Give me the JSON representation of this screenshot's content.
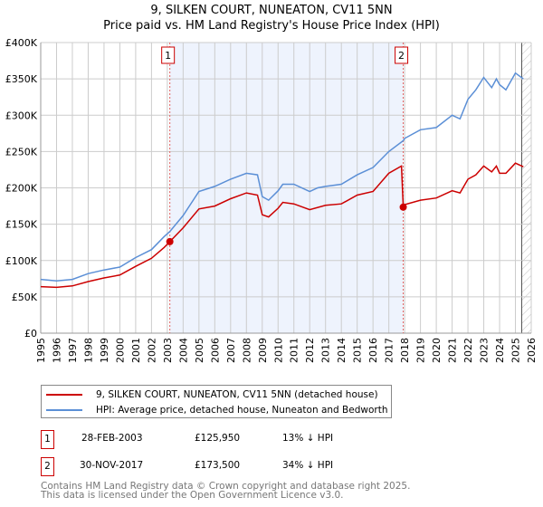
{
  "chart_data": {
    "type": "line",
    "title": "9, SILKEN COURT, NUNEATON, CV11 5NN",
    "subtitle": "Price paid vs. HM Land Registry's House Price Index (HPI)",
    "xlim": [
      1995,
      2026
    ],
    "ylim": [
      0,
      400000
    ],
    "x_ticks": [
      "1995",
      "1996",
      "1997",
      "1998",
      "1999",
      "2000",
      "2001",
      "2002",
      "2003",
      "2004",
      "2005",
      "2006",
      "2007",
      "2008",
      "2009",
      "2010",
      "2011",
      "2012",
      "2013",
      "2014",
      "2015",
      "2016",
      "2017",
      "2018",
      "2019",
      "2020",
      "2021",
      "2022",
      "2023",
      "2024",
      "2025",
      "2026"
    ],
    "y_ticks": [
      {
        "v": 0,
        "label": "£0"
      },
      {
        "v": 50000,
        "label": "£50K"
      },
      {
        "v": 100000,
        "label": "£100K"
      },
      {
        "v": 150000,
        "label": "£150K"
      },
      {
        "v": 200000,
        "label": "£200K"
      },
      {
        "v": 250000,
        "label": "£250K"
      },
      {
        "v": 300000,
        "label": "£300K"
      },
      {
        "v": 350000,
        "label": "£350K"
      },
      {
        "v": 400000,
        "label": "£400K"
      }
    ],
    "grid": true,
    "series": [
      {
        "name": "9, SILKEN COURT, NUNEATON, CV11 5NN (detached house)",
        "color": "#cc0000",
        "x": [
          1995,
          1996,
          1997,
          1998,
          1999,
          2000,
          2001,
          2002,
          2002.8,
          2003.16,
          2004,
          2005,
          2006,
          2007,
          2008,
          2008.7,
          2009,
          2009.4,
          2010,
          2010.3,
          2011,
          2012,
          2013,
          2014,
          2015,
          2016,
          2017,
          2017.8,
          2017.91,
          2018,
          2019,
          2020,
          2021,
          2021.5,
          2022,
          2022.5,
          2023,
          2023.5,
          2023.8,
          2024,
          2024.4,
          2025,
          2025.5
        ],
        "y": [
          64000,
          63000,
          65000,
          71000,
          76000,
          80000,
          92000,
          103000,
          118000,
          125950,
          145000,
          171000,
          175000,
          185000,
          193000,
          190000,
          163000,
          160000,
          172000,
          180000,
          178000,
          170000,
          176000,
          178000,
          190000,
          195000,
          220000,
          230000,
          173500,
          177000,
          183000,
          186000,
          196000,
          193000,
          212000,
          218000,
          230000,
          222000,
          230000,
          220000,
          220000,
          234000,
          229000
        ]
      },
      {
        "name": "HPI: Average price, detached house, Nuneaton and Bedworth",
        "color": "#5b8fd6",
        "x": [
          1995,
          1996,
          1997,
          1998,
          1999,
          2000,
          2001,
          2002,
          2002.8,
          2003.16,
          2004,
          2005,
          2006,
          2007,
          2008,
          2008.7,
          2009,
          2009.4,
          2010,
          2010.3,
          2011,
          2012,
          2012.5,
          2013,
          2014,
          2015,
          2016,
          2017,
          2017.91,
          2018,
          2019,
          2020,
          2021,
          2021.5,
          2022,
          2022.5,
          2023,
          2023.5,
          2023.8,
          2024,
          2024.4,
          2025,
          2025.5
        ],
        "y": [
          74000,
          72000,
          74000,
          82000,
          87000,
          91000,
          104000,
          115000,
          133000,
          140000,
          162000,
          195000,
          202000,
          212000,
          220000,
          218000,
          188000,
          183000,
          196000,
          205000,
          205000,
          195000,
          200000,
          202000,
          205000,
          218000,
          228000,
          250000,
          265000,
          268000,
          280000,
          283000,
          300000,
          295000,
          322000,
          335000,
          352000,
          338000,
          350000,
          342000,
          335000,
          358000,
          350000
        ]
      }
    ],
    "sales": [
      {
        "id": "1",
        "x": 2003.16,
        "y": 125950
      },
      {
        "id": "2",
        "x": 2017.91,
        "y": 173500
      }
    ],
    "shaded_range": [
      2003.16,
      2017.91
    ],
    "forecast_from": 2025.4
  },
  "legend": [
    "9, SILKEN COURT, NUNEATON, CV11 5NN (detached house)",
    "HPI: Average price, detached house, Nuneaton and Bedworth"
  ],
  "transactions": [
    {
      "id": "1",
      "date": "28-FEB-2003",
      "price": "£125,950",
      "hpi": "13% ↓ HPI"
    },
    {
      "id": "2",
      "date": "30-NOV-2017",
      "price": "£173,500",
      "hpi": "34% ↓ HPI"
    }
  ],
  "footer": [
    "Contains HM Land Registry data © Crown copyright and database right 2025.",
    "This data is licensed under the Open Government Licence v3.0."
  ]
}
